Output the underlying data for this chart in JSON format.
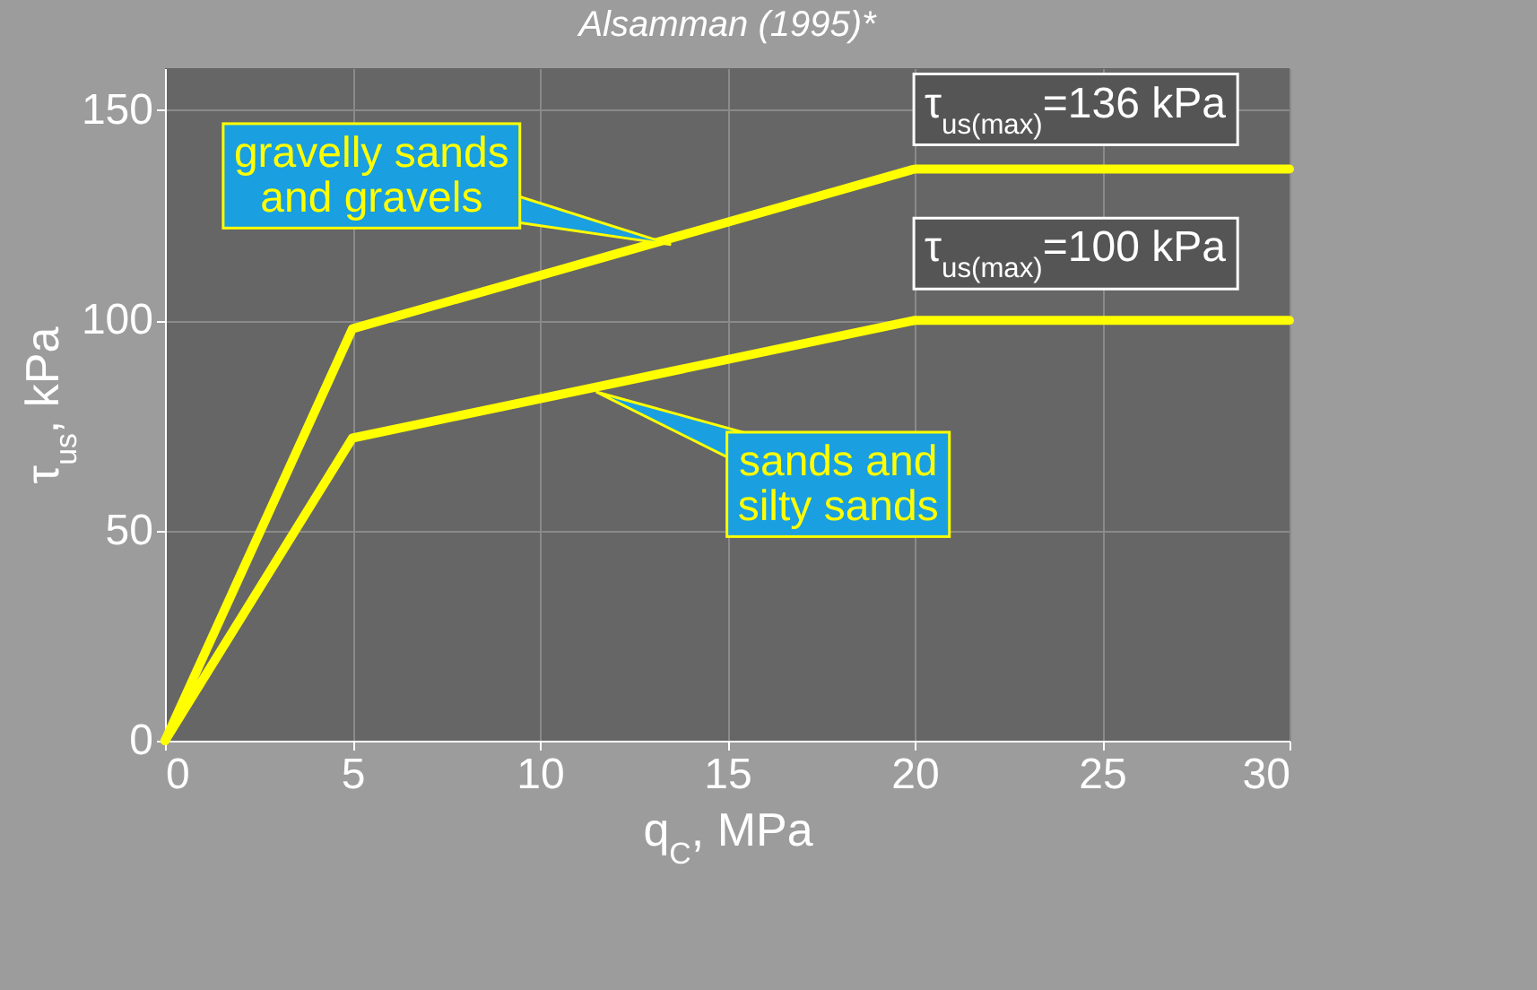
{
  "chart_data": {
    "type": "line",
    "title": "Alsamman (1995)*",
    "xlabel": "q$_{C}$, MPa",
    "ylabel": "τ$_{us}$, kPa",
    "x": [
      0,
      5,
      20,
      30
    ],
    "series": [
      {
        "color": "#ffff00",
        "values": [
          0,
          98,
          136,
          136
        ]
      },
      {
        "color": "#ffff00",
        "values": [
          0,
          72,
          100,
          100
        ]
      }
    ],
    "xlim": [
      0,
      30
    ],
    "ylim": [
      0,
      160
    ],
    "xticks": [
      0,
      5,
      10,
      15,
      20,
      25,
      30
    ],
    "yticks": [
      0,
      50,
      100,
      150
    ],
    "grid": true,
    "marker": "none",
    "line_style": "solid",
    "annotations": [
      {
        "text": "τ$_{us(max)}$=136 kPa",
        "x": 25,
        "y": 136
      },
      {
        "text": "τ$_{us(max)}$=100 kPa",
        "x": 25,
        "y": 100
      },
      {
        "text": "gravelly sands\nand gravels",
        "x": 13.5,
        "y": 118
      },
      {
        "text": "sands and\nsilty sands",
        "x": 11.5,
        "y": 83
      }
    ]
  }
}
